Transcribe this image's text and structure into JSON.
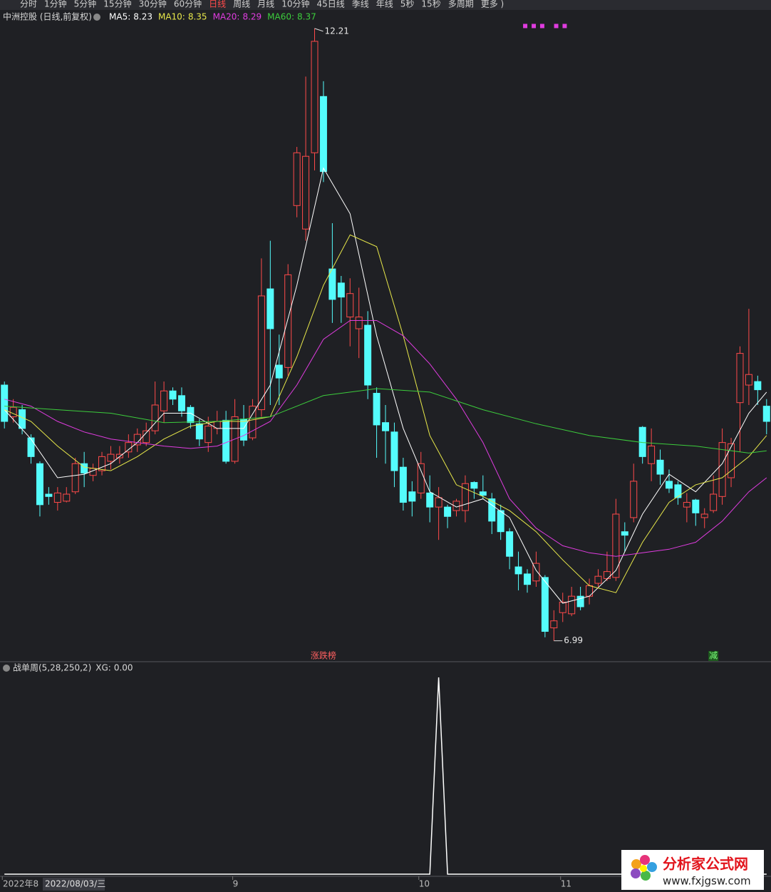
{
  "toolbar": {
    "tabs": [
      "分时",
      "1分钟",
      "5分钟",
      "15分钟",
      "30分钟",
      "60分钟",
      "日线",
      "周线",
      "月线",
      "10分钟",
      "45日线",
      "季线",
      "年线",
      "5秒",
      "15秒",
      "多周期",
      "更多 )"
    ],
    "active": 6
  },
  "chart_data": [
    {
      "type": "candlestick",
      "title": "中洲控股 (日线,前复权)",
      "categories": [
        "2022年8",
        null,
        null,
        null,
        null,
        null,
        null,
        null,
        null,
        null,
        null,
        null,
        null,
        null,
        null,
        null,
        null,
        null,
        null,
        null,
        null,
        null,
        null,
        null,
        null,
        null,
        "9",
        null,
        null,
        null,
        null,
        null,
        null,
        null,
        null,
        null,
        null,
        null,
        null,
        null,
        null,
        null,
        null,
        null,
        null,
        null,
        null,
        "10",
        null,
        null,
        null,
        null,
        null,
        null,
        null,
        null,
        null,
        null,
        null,
        null,
        null,
        null,
        null,
        "11",
        null,
        null,
        null,
        null,
        null,
        null,
        null,
        null,
        null,
        null,
        null,
        null,
        null,
        null,
        null,
        null,
        null,
        null,
        null,
        null,
        null,
        null,
        null
      ],
      "cursor_label": "2022/08/03/三",
      "xlim": [
        -0.5,
        86.5
      ],
      "ylim": [
        6.83,
        12.27
      ],
      "up_color": "#ff4a4a",
      "down_color": "#54fcfc",
      "candles": [
        [
          9.17,
          9.2,
          8.8,
          8.86
        ],
        [
          8.9,
          9.05,
          8.85,
          8.98
        ],
        [
          8.96,
          9.0,
          8.75,
          8.8
        ],
        [
          8.72,
          8.75,
          8.5,
          8.56
        ],
        [
          8.5,
          8.52,
          8.05,
          8.15
        ],
        [
          8.24,
          8.3,
          8.15,
          8.22
        ],
        [
          8.17,
          8.3,
          8.1,
          8.25
        ],
        [
          8.18,
          8.3,
          8.17,
          8.24
        ],
        [
          8.26,
          8.55,
          8.24,
          8.5
        ],
        [
          8.5,
          8.6,
          8.3,
          8.42
        ],
        [
          8.4,
          8.5,
          8.35,
          8.46
        ],
        [
          8.44,
          8.6,
          8.4,
          8.56
        ],
        [
          8.52,
          8.65,
          8.45,
          8.58
        ],
        [
          8.55,
          8.65,
          8.5,
          8.58
        ],
        [
          8.6,
          8.75,
          8.55,
          8.68
        ],
        [
          8.66,
          8.8,
          8.6,
          8.75
        ],
        [
          8.68,
          8.85,
          8.65,
          8.78
        ],
        [
          8.78,
          9.2,
          8.75,
          9.0
        ],
        [
          8.95,
          9.2,
          8.85,
          9.12
        ],
        [
          9.12,
          9.15,
          9.0,
          9.05
        ],
        [
          9.08,
          9.15,
          8.9,
          8.95
        ],
        [
          8.98,
          9.0,
          8.8,
          8.85
        ],
        [
          8.84,
          8.88,
          8.65,
          8.71
        ],
        [
          8.68,
          8.9,
          8.6,
          8.82
        ],
        [
          8.8,
          8.95,
          8.75,
          8.86
        ],
        [
          8.87,
          8.95,
          8.5,
          8.52
        ],
        [
          8.52,
          9.05,
          8.5,
          8.9
        ],
        [
          8.88,
          9.0,
          8.65,
          8.7
        ],
        [
          8.72,
          9.05,
          8.7,
          8.99
        ],
        [
          8.96,
          10.25,
          8.9,
          9.93
        ],
        [
          9.99,
          10.4,
          9.0,
          9.65
        ],
        [
          9.34,
          9.6,
          9.0,
          9.23
        ],
        [
          9.32,
          10.2,
          9.25,
          10.11
        ],
        [
          10.7,
          11.2,
          10.6,
          11.15
        ],
        [
          10.5,
          11.8,
          10.4,
          11.12
        ],
        [
          11.15,
          12.21,
          11.0,
          12.1
        ],
        [
          11.63,
          11.76,
          10.9,
          10.99
        ],
        [
          10.16,
          10.55,
          9.7,
          9.9
        ],
        [
          10.04,
          10.1,
          9.7,
          9.92
        ],
        [
          9.75,
          10.08,
          9.5,
          9.95
        ],
        [
          9.65,
          10.0,
          9.4,
          9.75
        ],
        [
          9.68,
          9.8,
          9.05,
          9.17
        ],
        [
          9.1,
          9.15,
          8.55,
          8.83
        ],
        [
          8.85,
          9.0,
          8.5,
          8.78
        ],
        [
          8.77,
          8.85,
          8.3,
          8.44
        ],
        [
          8.47,
          8.55,
          8.1,
          8.17
        ],
        [
          8.26,
          8.35,
          8.05,
          8.18
        ],
        [
          8.25,
          8.6,
          8.2,
          8.5
        ],
        [
          8.25,
          8.4,
          8.0,
          8.13
        ],
        [
          8.13,
          8.3,
          7.85,
          8.21
        ],
        [
          8.13,
          8.15,
          7.95,
          8.05
        ],
        [
          8.1,
          8.2,
          8.05,
          8.18
        ],
        [
          8.1,
          8.4,
          8.0,
          8.33
        ],
        [
          8.34,
          8.35,
          8.2,
          8.29
        ],
        [
          8.26,
          8.4,
          8.2,
          8.23
        ],
        [
          8.2,
          8.25,
          7.9,
          8.01
        ],
        [
          8.1,
          8.15,
          7.85,
          7.92
        ],
        [
          7.92,
          7.95,
          7.6,
          7.71
        ],
        [
          7.62,
          7.75,
          7.42,
          7.56
        ],
        [
          7.56,
          7.6,
          7.4,
          7.47
        ],
        [
          7.5,
          7.75,
          7.45,
          7.65
        ],
        [
          7.53,
          7.55,
          7.02,
          7.07
        ],
        [
          7.1,
          7.25,
          6.99,
          7.16
        ],
        [
          7.23,
          7.4,
          7.15,
          7.32
        ],
        [
          7.22,
          7.45,
          7.2,
          7.37
        ],
        [
          7.37,
          7.45,
          7.25,
          7.28
        ],
        [
          7.37,
          7.52,
          7.3,
          7.46
        ],
        [
          7.48,
          7.6,
          7.45,
          7.54
        ],
        [
          7.52,
          7.75,
          7.5,
          7.58
        ],
        [
          7.53,
          8.2,
          7.5,
          8.07
        ],
        [
          7.92,
          8.0,
          7.75,
          7.89
        ],
        [
          8.04,
          8.5,
          8.0,
          8.35
        ],
        [
          8.81,
          8.82,
          8.5,
          8.56
        ],
        [
          8.5,
          8.8,
          8.35,
          8.65
        ],
        [
          8.53,
          8.62,
          8.32,
          8.41
        ],
        [
          8.35,
          8.45,
          8.25,
          8.29
        ],
        [
          8.32,
          8.35,
          8.15,
          8.21
        ],
        [
          8.13,
          8.25,
          8.0,
          8.17
        ],
        [
          8.19,
          8.2,
          7.97,
          8.08
        ],
        [
          8.04,
          8.12,
          7.95,
          8.07
        ],
        [
          8.1,
          8.4,
          8.08,
          8.24
        ],
        [
          8.22,
          8.8,
          8.15,
          8.68
        ],
        [
          8.38,
          8.72,
          8.3,
          8.67
        ],
        [
          9.02,
          9.5,
          8.6,
          9.44
        ],
        [
          9.17,
          9.82,
          9.0,
          9.26
        ],
        [
          9.2,
          9.25,
          9.0,
          9.13
        ],
        [
          8.99,
          9.05,
          8.75,
          8.86
        ]
      ],
      "series": [
        {
          "name": "MA5:",
          "current": 8.23,
          "color": "#ffffff",
          "x": [
            0,
            3,
            6,
            9,
            12,
            15,
            18,
            21,
            24,
            27,
            30,
            33,
            36,
            39,
            42,
            45,
            48,
            51,
            54,
            57,
            60,
            63,
            66,
            69,
            72,
            75,
            78,
            81,
            84,
            86
          ],
          "values": [
            8.96,
            8.71,
            8.38,
            8.41,
            8.5,
            8.68,
            8.93,
            8.93,
            8.8,
            8.8,
            9.17,
            10.02,
            11.02,
            10.63,
            9.59,
            8.8,
            8.26,
            8.13,
            8.2,
            8.04,
            7.59,
            7.31,
            7.37,
            7.59,
            8.07,
            8.41,
            8.26,
            8.5,
            8.93,
            9.11
          ]
        },
        {
          "name": "MA10:",
          "current": 8.35,
          "color": "#e8e84a",
          "x": [
            0,
            3,
            6,
            9,
            12,
            15,
            18,
            21,
            24,
            27,
            30,
            33,
            36,
            39,
            42,
            45,
            48,
            51,
            54,
            57,
            60,
            63,
            66,
            69,
            72,
            75,
            78,
            81,
            84,
            86
          ],
          "values": [
            8.96,
            8.86,
            8.65,
            8.47,
            8.44,
            8.56,
            8.71,
            8.82,
            8.86,
            8.86,
            8.9,
            9.41,
            10.02,
            10.45,
            10.35,
            9.59,
            8.74,
            8.32,
            8.22,
            8.1,
            7.92,
            7.68,
            7.46,
            7.4,
            7.83,
            8.17,
            8.32,
            8.38,
            8.56,
            8.74
          ]
        },
        {
          "name": "MA20:",
          "current": 8.29,
          "color": "#e03ce0",
          "x": [
            0,
            3,
            6,
            9,
            12,
            15,
            18,
            21,
            24,
            27,
            30,
            33,
            36,
            39,
            42,
            45,
            48,
            51,
            54,
            57,
            60,
            63,
            66,
            69,
            72,
            75,
            78,
            81,
            84,
            86
          ],
          "values": [
            9.05,
            8.99,
            8.86,
            8.77,
            8.71,
            8.68,
            8.65,
            8.63,
            8.65,
            8.74,
            8.86,
            9.17,
            9.56,
            9.72,
            9.72,
            9.59,
            9.35,
            9.05,
            8.68,
            8.2,
            7.95,
            7.8,
            7.74,
            7.71,
            7.74,
            7.77,
            7.83,
            8.01,
            8.26,
            8.38
          ]
        },
        {
          "name": "MA60:",
          "current": 8.37,
          "color": "#3ccc3c",
          "x": [
            0,
            6,
            12,
            18,
            24,
            30,
            36,
            42,
            48,
            54,
            60,
            66,
            72,
            78,
            84,
            86
          ],
          "values": [
            8.99,
            8.96,
            8.93,
            8.85,
            8.86,
            8.9,
            9.08,
            9.14,
            9.11,
            8.96,
            8.84,
            8.74,
            8.68,
            8.65,
            8.59,
            8.61
          ]
        }
      ],
      "annotations": [
        {
          "index": 35,
          "value": 12.21
        },
        {
          "index": 62,
          "value": 6.99
        }
      ],
      "signals": [
        {
          "index": 36,
          "label": "涨跌榜"
        },
        {
          "index": 80,
          "label": "减"
        }
      ]
    },
    {
      "type": "line",
      "title": "战单周(5,28,250,2)",
      "value_name": "XG:",
      "value_current": {
        "value": 0,
        "label": "0.00"
      },
      "xlim": [
        -0.5,
        86.5
      ],
      "ylim": [
        0,
        1
      ],
      "color": "#ffffff",
      "values": [
        0,
        0,
        0,
        0,
        0,
        0,
        0,
        0,
        0,
        0,
        0,
        0,
        0,
        0,
        0,
        0,
        0,
        0,
        0,
        0,
        0,
        0,
        0,
        0,
        0,
        0,
        0,
        0,
        0,
        0,
        0,
        0,
        0,
        0,
        0,
        0,
        0,
        0,
        0,
        0,
        0,
        0,
        0,
        0,
        0,
        0,
        0,
        0,
        0,
        1,
        0,
        0,
        0,
        0,
        0,
        0,
        0,
        0,
        0,
        0,
        0,
        0,
        0,
        0,
        0,
        0,
        0,
        0,
        0,
        0,
        0,
        0,
        0,
        0,
        0,
        0,
        0,
        0,
        0,
        0,
        0,
        0,
        0,
        0,
        0,
        0,
        0
      ]
    }
  ],
  "watermark": {
    "title": "分析家公式网",
    "url": "www.fxjgsw.com"
  }
}
